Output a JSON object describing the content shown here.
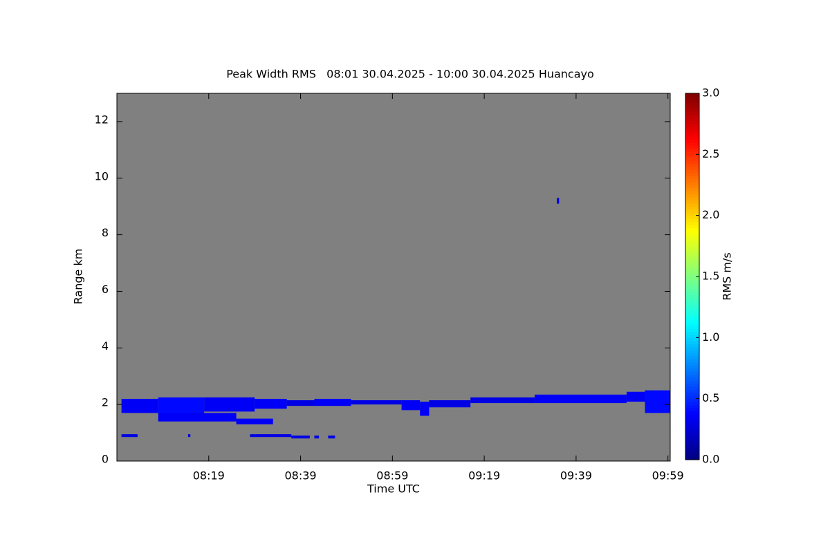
{
  "chart_data": {
    "type": "heatmap",
    "title": "Peak Width RMS   08:01 30.04.2025 - 10:00 30.04.2025 Huancayo",
    "xlabel": "Time UTC",
    "ylabel": "Range km",
    "colorbar_label": "RMS m/s",
    "xlim": [
      479,
      599.5
    ],
    "xticks": [
      {
        "value": 499,
        "label": "08:19"
      },
      {
        "value": 519,
        "label": "08:39"
      },
      {
        "value": 539,
        "label": "08:59"
      },
      {
        "value": 559,
        "label": "09:19"
      },
      {
        "value": 579,
        "label": "09:39"
      },
      {
        "value": 599,
        "label": "09:59"
      }
    ],
    "ylim": [
      0,
      13
    ],
    "yticks": [
      0,
      2,
      4,
      6,
      8,
      10,
      12
    ],
    "clim": [
      0,
      3
    ],
    "cticks": [
      {
        "value": 0,
        "label": "0.0"
      },
      {
        "value": 0.5,
        "label": "0.5"
      },
      {
        "value": 1,
        "label": "1.0"
      },
      {
        "value": 1.5,
        "label": "1.5"
      },
      {
        "value": 2,
        "label": "2.0"
      },
      {
        "value": 2.5,
        "label": "2.5"
      },
      {
        "value": 3,
        "label": "3.0"
      }
    ],
    "colormap": [
      "#00007f",
      "#0000ff",
      "#007fff",
      "#00ffff",
      "#7fff7f",
      "#ffff00",
      "#ff7f00",
      "#ff0000",
      "#7f0000"
    ],
    "background": "#808080",
    "cells": [
      {
        "t0": 480,
        "t1": 488,
        "r0": 1.7,
        "r1": 2.2,
        "value": 0.35
      },
      {
        "t0": 488,
        "t1": 498,
        "r0": 1.65,
        "r1": 2.25,
        "value": 0.4
      },
      {
        "t0": 498,
        "t1": 509,
        "r0": 1.75,
        "r1": 2.25,
        "value": 0.35
      },
      {
        "t0": 509,
        "t1": 516,
        "r0": 1.85,
        "r1": 2.2,
        "value": 0.35
      },
      {
        "t0": 516,
        "t1": 522,
        "r0": 1.95,
        "r1": 2.15,
        "value": 0.3
      },
      {
        "t0": 522,
        "t1": 530,
        "r0": 1.95,
        "r1": 2.2,
        "value": 0.35
      },
      {
        "t0": 530,
        "t1": 541,
        "r0": 2.0,
        "r1": 2.15,
        "value": 0.3
      },
      {
        "t0": 541,
        "t1": 545,
        "r0": 1.8,
        "r1": 2.15,
        "value": 0.35
      },
      {
        "t0": 545,
        "t1": 547,
        "r0": 1.6,
        "r1": 2.1,
        "value": 0.35
      },
      {
        "t0": 547,
        "t1": 556,
        "r0": 1.9,
        "r1": 2.15,
        "value": 0.3
      },
      {
        "t0": 556,
        "t1": 570,
        "r0": 2.05,
        "r1": 2.25,
        "value": 0.3
      },
      {
        "t0": 570,
        "t1": 590,
        "r0": 2.05,
        "r1": 2.35,
        "value": 0.35
      },
      {
        "t0": 590,
        "t1": 594,
        "r0": 2.1,
        "r1": 2.45,
        "value": 0.35
      },
      {
        "t0": 594,
        "t1": 599.5,
        "r0": 1.7,
        "r1": 2.5,
        "value": 0.4
      },
      {
        "t0": 488,
        "t1": 505,
        "r0": 1.4,
        "r1": 1.7,
        "value": 0.35
      },
      {
        "t0": 505,
        "t1": 513,
        "r0": 1.3,
        "r1": 1.5,
        "value": 0.35
      },
      {
        "t0": 480,
        "t1": 483.5,
        "r0": 0.85,
        "r1": 0.95,
        "value": 0.3
      },
      {
        "t0": 508,
        "t1": 517,
        "r0": 0.85,
        "r1": 0.95,
        "value": 0.3
      },
      {
        "t0": 517,
        "t1": 521,
        "r0": 0.8,
        "r1": 0.9,
        "value": 0.3
      },
      {
        "t0": 522,
        "t1": 523,
        "r0": 0.8,
        "r1": 0.9,
        "value": 0.3
      },
      {
        "t0": 525,
        "t1": 526.5,
        "r0": 0.8,
        "r1": 0.9,
        "value": 0.3
      },
      {
        "t0": 494.5,
        "t1": 495,
        "r0": 0.85,
        "r1": 0.95,
        "value": 0.3
      },
      {
        "t0": 574.8,
        "t1": 575.3,
        "r0": 9.1,
        "r1": 9.3,
        "value": 0.3
      }
    ]
  }
}
